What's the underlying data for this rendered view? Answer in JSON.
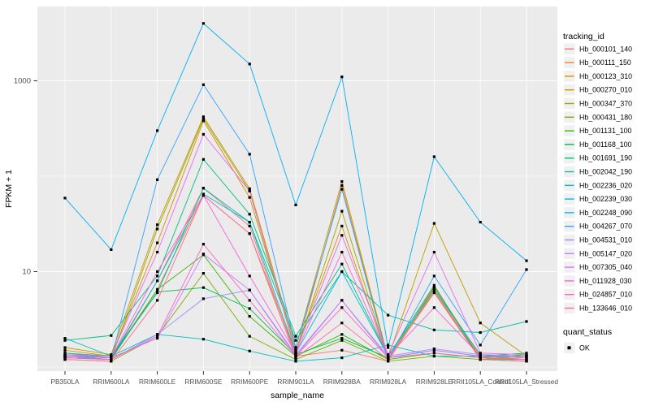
{
  "chart_data": {
    "type": "line",
    "title": "",
    "xlabel": "sample_name",
    "ylabel": "FPKM + 1",
    "y_scale": "log10",
    "y_axis_ticks": [
      {
        "value": 10,
        "label": "10"
      },
      {
        "value": 1000,
        "label": "1000"
      }
    ],
    "y_minor_gridlines": [
      1,
      100
    ],
    "ylim_log10": [
      0,
      3.78
    ],
    "grid": true,
    "panel_bg": "#EBEBEB",
    "grid_color": "#FFFFFF",
    "axis_text_color": "#4D4D4D",
    "axis_title_color": "#000000",
    "marker": {
      "shape": "square",
      "color": "#000000",
      "size": 3.2
    },
    "categories": [
      "PB350LA",
      "RRIM600LA",
      "RRIM600LE",
      "RRIM600SE",
      "RRIM600PE",
      "RRIM901LA",
      "RRIM928BA",
      "RRIM928LA",
      "RRIM928LE",
      "RRII105LA_Control",
      "RRII105LA_Stressed"
    ],
    "legend": {
      "title": "tracking_id",
      "position": "right",
      "key_bg": "#F0F0F0"
    },
    "quant_legend": {
      "title": "quant_status",
      "items": [
        {
          "label": "OK",
          "marker": "black-square"
        }
      ]
    },
    "series": [
      {
        "name": "Hb_000101_140",
        "color": "#F8766D",
        "values": [
          1.3,
          1.2,
          8.0,
          75,
          30,
          1.3,
          1.5,
          1.15,
          6.5,
          1.2,
          1.15
        ]
      },
      {
        "name": "Hb_000111_150",
        "color": "#EA8331",
        "values": [
          1.4,
          1.25,
          6.5,
          63,
          25,
          1.4,
          80,
          1.2,
          6.8,
          1.25,
          1.2
        ]
      },
      {
        "name": "Hb_000123_310",
        "color": "#D89000",
        "values": [
          1.5,
          1.3,
          20,
          380,
          60,
          1.5,
          30,
          1.2,
          7.0,
          1.3,
          1.2
        ]
      },
      {
        "name": "Hb_000270_010",
        "color": "#C09B00",
        "values": [
          1.6,
          1.35,
          31,
          420,
          74,
          1.6,
          88,
          1.25,
          32,
          2.9,
          1.3
        ]
      },
      {
        "name": "Hb_000347_370",
        "color": "#A3A500",
        "values": [
          1.3,
          1.2,
          28,
          400,
          70,
          1.4,
          43,
          1.2,
          6.2,
          1.2,
          1.15
        ]
      },
      {
        "name": "Hb_000431_180",
        "color": "#7CAE00",
        "values": [
          1.2,
          1.15,
          2.1,
          9.6,
          2.1,
          1.2,
          1.9,
          1.15,
          1.3,
          1.2,
          1.3
        ]
      },
      {
        "name": "Hb_001131_100",
        "color": "#39B600",
        "values": [
          1.25,
          1.2,
          6.5,
          15,
          3.4,
          1.3,
          2.2,
          1.2,
          1.4,
          1.25,
          1.35
        ]
      },
      {
        "name": "Hb_001168_100",
        "color": "#00BB4E",
        "values": [
          1.3,
          1.25,
          6.1,
          6.8,
          4.1,
          1.35,
          2.0,
          1.25,
          1.5,
          1.3,
          1.4
        ]
      },
      {
        "name": "Hb_001691_190",
        "color": "#00BF7D",
        "values": [
          1.9,
          2.14,
          9.0,
          150,
          40,
          2.1,
          12,
          1.3,
          7.2,
          1.2,
          1.2
        ]
      },
      {
        "name": "Hb_002042_190",
        "color": "#00C1A3",
        "values": [
          1.4,
          1.3,
          6.0,
          75,
          33,
          1.9,
          10,
          3.5,
          2.45,
          2.3,
          3.0
        ]
      },
      {
        "name": "Hb_002236_020",
        "color": "#00BFC4",
        "values": [
          2.0,
          1.3,
          2.2,
          1.96,
          1.47,
          1.15,
          1.25,
          1.7,
          1.3,
          1.3,
          1.3
        ]
      },
      {
        "name": "Hb_002239_030",
        "color": "#00BAE0",
        "values": [
          1.35,
          1.25,
          8.0,
          65,
          33,
          1.4,
          10,
          1.3,
          6.5,
          1.35,
          1.3
        ]
      },
      {
        "name": "Hb_002248_090",
        "color": "#00B0F6",
        "values": [
          59,
          17,
          300,
          4000,
          1500,
          50,
          1100,
          1.6,
          160,
          33,
          13
        ]
      },
      {
        "name": "Hb_004267_070",
        "color": "#35A2FF",
        "values": [
          1.3,
          1.2,
          92,
          910,
          170,
          1.6,
          73,
          1.2,
          9.0,
          1.7,
          10.5
        ]
      },
      {
        "name": "Hb_004531_010",
        "color": "#9590FF",
        "values": [
          1.25,
          1.2,
          2.2,
          5.2,
          6.4,
          1.3,
          5.0,
          1.25,
          1.5,
          1.3,
          1.25
        ]
      },
      {
        "name": "Hb_005147_020",
        "color": "#C77CFF",
        "values": [
          1.3,
          1.25,
          2.0,
          15.3,
          6.4,
          1.35,
          5.0,
          1.3,
          1.55,
          1.35,
          1.3
        ]
      },
      {
        "name": "Hb_007305_040",
        "color": "#E76BF3",
        "values": [
          1.35,
          1.3,
          16,
          275,
          70,
          1.45,
          24,
          1.35,
          16,
          1.4,
          1.35
        ]
      },
      {
        "name": "Hb_011928_030",
        "color": "#FA62DB",
        "values": [
          1.3,
          1.25,
          10,
          63,
          9.0,
          1.4,
          16,
          1.3,
          4.2,
          1.3,
          1.25
        ]
      },
      {
        "name": "Hb_024857_010",
        "color": "#FF62BC",
        "values": [
          1.25,
          1.2,
          2.1,
          19.4,
          5.0,
          1.3,
          4.2,
          1.25,
          1.4,
          1.25,
          1.2
        ]
      },
      {
        "name": "Hb_133646_010",
        "color": "#FF6A98",
        "values": [
          1.2,
          1.15,
          5.0,
          63,
          25,
          1.25,
          2.9,
          1.2,
          6.0,
          1.2,
          1.15
        ]
      }
    ]
  }
}
